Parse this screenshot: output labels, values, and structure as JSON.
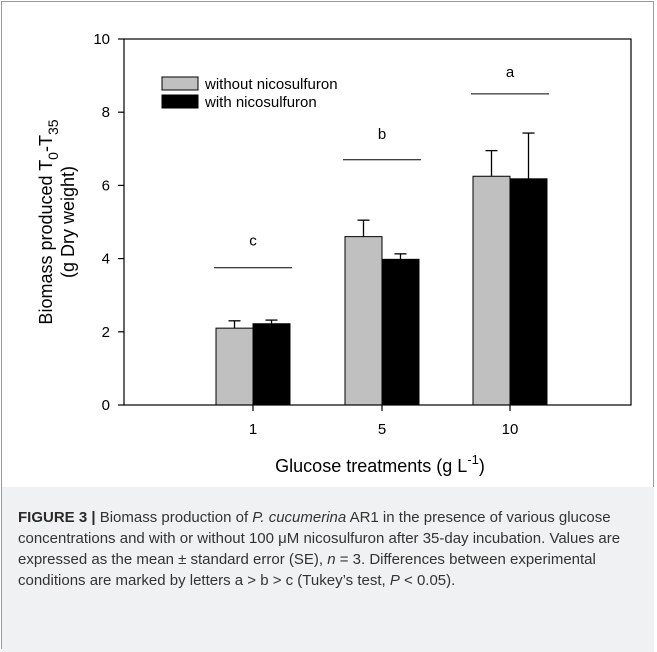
{
  "chart_data": {
    "type": "bar",
    "categories": [
      "1",
      "5",
      "10"
    ],
    "series": [
      {
        "name": "without nicosulfuron",
        "color": "#c0c0c0",
        "values": [
          2.1,
          4.6,
          6.25
        ],
        "errors": [
          0.2,
          0.45,
          0.7
        ]
      },
      {
        "name": "with nicosulfuron",
        "color": "#000000",
        "values": [
          2.22,
          3.98,
          6.18
        ],
        "errors": [
          0.1,
          0.15,
          1.25
        ]
      }
    ],
    "significance_letters": [
      "c",
      "b",
      "a"
    ],
    "significance_line_y": [
      3.75,
      6.7,
      8.5
    ],
    "significance_letter_y": [
      4.5,
      7.4,
      9.1
    ],
    "ylim": [
      0,
      10
    ],
    "yticks": [
      "0",
      "2",
      "4",
      "6",
      "8",
      "10"
    ],
    "ylabel_line1": "Biomass produced T",
    "ylabel_sub1": "0",
    "ylabel_mid": "-T",
    "ylabel_sub2": "35",
    "ylabel_line2": "(g Dry weight)",
    "xlabel_main": "Glucose treatments (g L",
    "xlabel_sup": "-1",
    "xlabel_end": ")",
    "legend_position": "top-left",
    "grid": false
  },
  "caption": {
    "fig_label": "FIGURE 3 |",
    "t1": " Biomass production of ",
    "species": "P. cucumerina",
    "t2": " AR1 in the presence of various glucose concentrations and with or without 100 μM nicosulfuron after 35-day incubation. Values are expressed as the mean ± standard error (SE), ",
    "n": "n",
    "t3": " = 3. Differences between experimental conditions are marked by letters a > b > c (Tukey’s test, ",
    "p": "P",
    "t4": " < 0.05)."
  }
}
